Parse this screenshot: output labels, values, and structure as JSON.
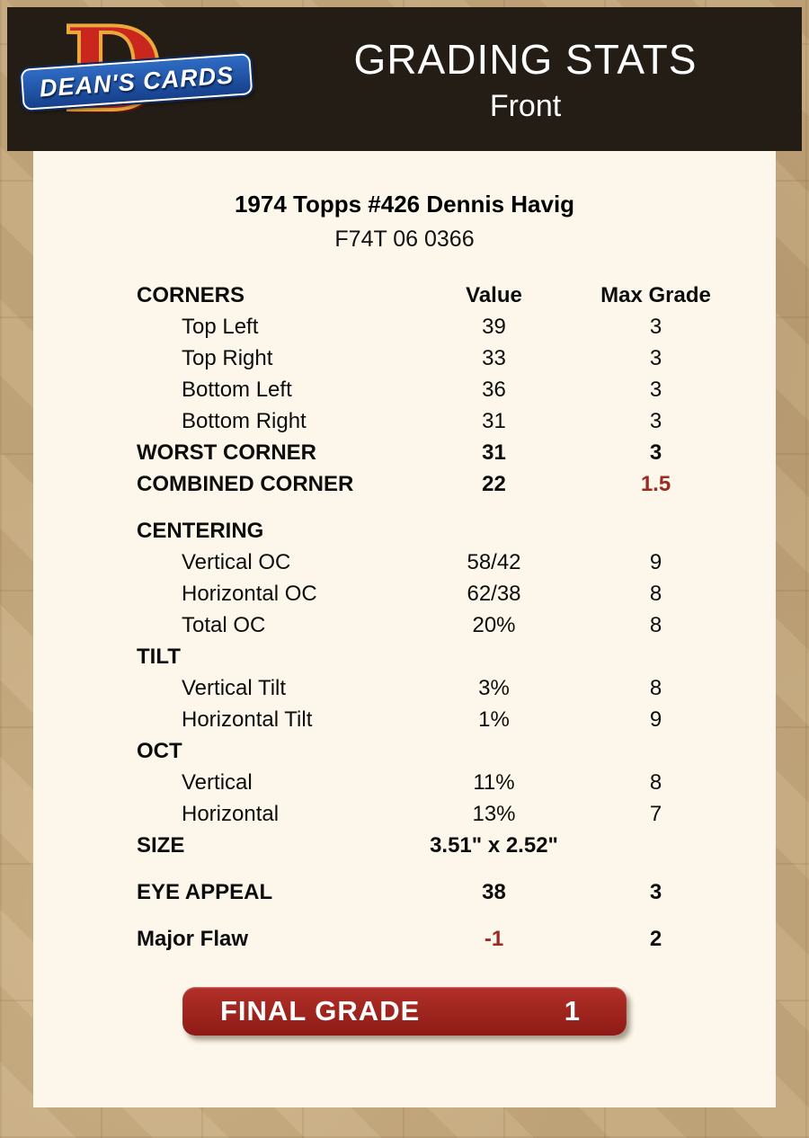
{
  "header": {
    "title": "GRADING STATS",
    "subtitle": "Front",
    "logo": {
      "monogram": "D",
      "text": "DEAN'S CARDS"
    }
  },
  "card": {
    "title": "1974 Topps #426 Dennis Havig",
    "code": "F74T 06 0366"
  },
  "table": {
    "rows": [
      {
        "type": "row",
        "label": "CORNERS",
        "value": "Value",
        "max": "Max Grade",
        "bold": true
      },
      {
        "type": "row",
        "label": "Top Left",
        "value": "39",
        "max": "3",
        "indent": true
      },
      {
        "type": "row",
        "label": "Top Right",
        "value": "33",
        "max": "3",
        "indent": true
      },
      {
        "type": "row",
        "label": "Bottom Left",
        "value": "36",
        "max": "3",
        "indent": true
      },
      {
        "type": "row",
        "label": "Bottom Right",
        "value": "31",
        "max": "3",
        "indent": true
      },
      {
        "type": "row",
        "label": "WORST CORNER",
        "value": "31",
        "max": "3",
        "bold": true
      },
      {
        "type": "row",
        "label": "COMBINED CORNER",
        "value": "22",
        "max": "1.5",
        "bold": true,
        "max_red": true
      },
      {
        "type": "spacer"
      },
      {
        "type": "row",
        "label": "CENTERING",
        "value": "",
        "max": "",
        "bold": true
      },
      {
        "type": "row",
        "label": "Vertical OC",
        "value": "58/42",
        "max": "9",
        "indent": true
      },
      {
        "type": "row",
        "label": "Horizontal OC",
        "value": "62/38",
        "max": "8",
        "indent": true
      },
      {
        "type": "row",
        "label": "Total OC",
        "value": "20%",
        "max": "8",
        "indent": true
      },
      {
        "type": "row",
        "label": "TILT",
        "value": "",
        "max": "",
        "bold": true
      },
      {
        "type": "row",
        "label": "Vertical Tilt",
        "value": "3%",
        "max": "8",
        "indent": true
      },
      {
        "type": "row",
        "label": "Horizontal Tilt",
        "value": "1%",
        "max": "9",
        "indent": true
      },
      {
        "type": "row",
        "label": "OCT",
        "value": "",
        "max": "",
        "bold": true
      },
      {
        "type": "row",
        "label": "Vertical",
        "value": "11%",
        "max": "8",
        "indent": true
      },
      {
        "type": "row",
        "label": "Horizontal",
        "value": "13%",
        "max": "7",
        "indent": true
      },
      {
        "type": "row",
        "label": "SIZE",
        "value": "3.51\" x 2.52\"",
        "max": "",
        "bold": true
      },
      {
        "type": "spacer"
      },
      {
        "type": "row",
        "label": "EYE APPEAL",
        "value": "38",
        "max": "3",
        "bold": true
      },
      {
        "type": "spacer"
      },
      {
        "type": "row",
        "label": "Major Flaw",
        "value": "-1",
        "max": "2",
        "bold": true,
        "value_red": true
      }
    ]
  },
  "final_grade": {
    "label": "FINAL GRADE",
    "value": "1"
  },
  "colors": {
    "accent_red": "#9b2a20",
    "final_grade_red": "#9a1f1b",
    "header_bg": "#241d15",
    "panel_bg": "#fcf7ea",
    "page_bg": "#c3a77c",
    "ribbon_blue": "#16408c",
    "logo_red": "#c9261d",
    "logo_gold": "#e9a93c"
  }
}
